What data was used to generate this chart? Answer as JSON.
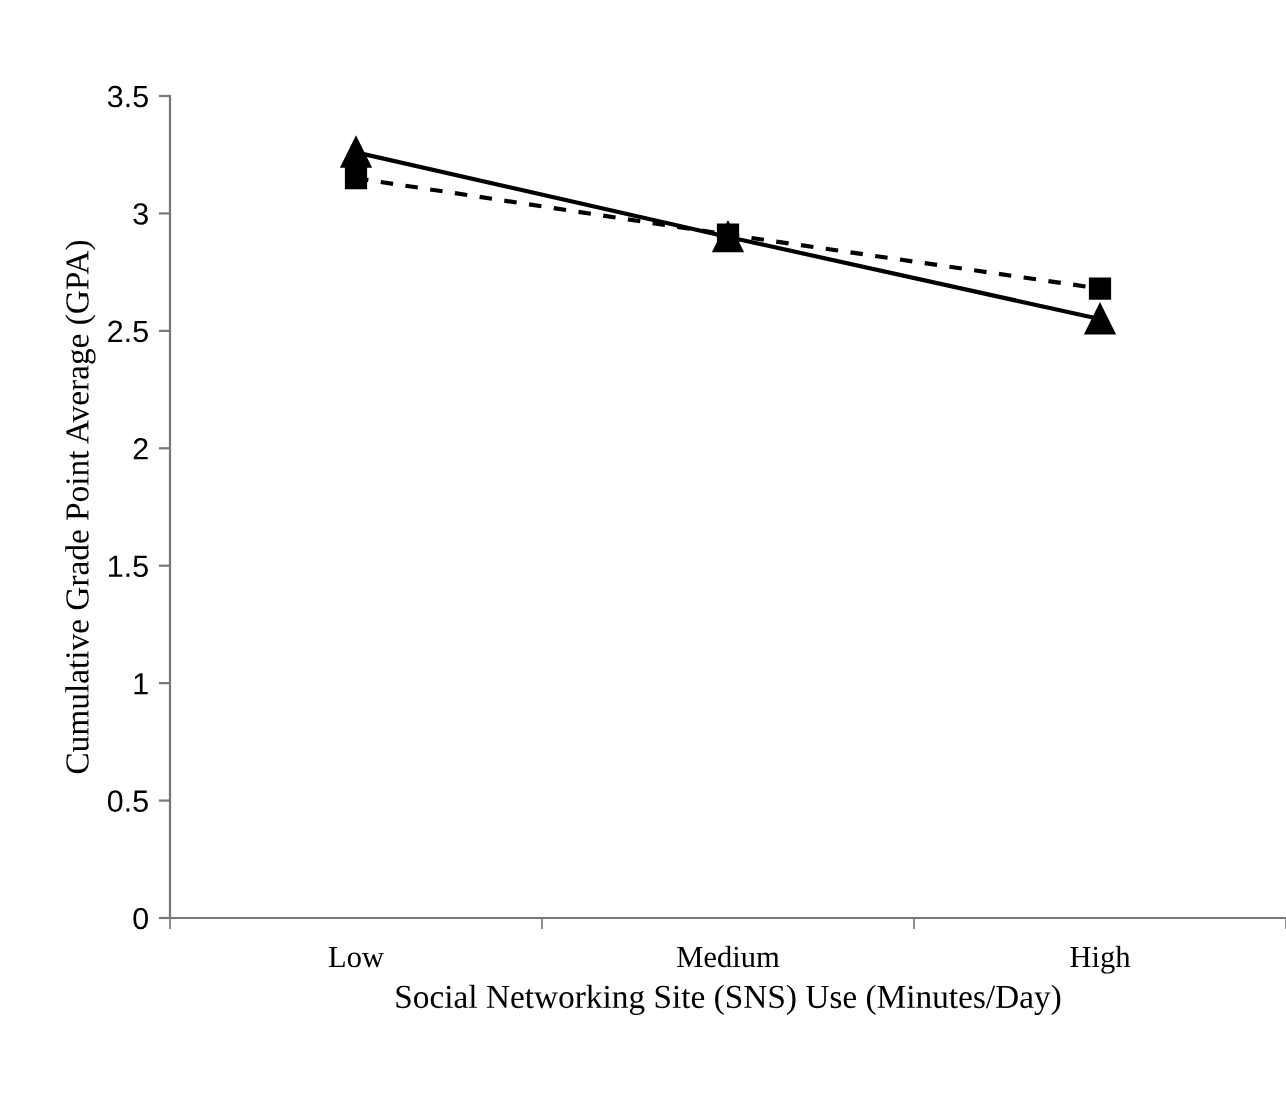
{
  "chart_data": {
    "type": "line",
    "xlabel": "Social Networking Site (SNS) Use (Minutes/Day)",
    "ylabel": "Cumulative Grade Point Average (GPA)",
    "categories": [
      "Low",
      "Medium",
      "High"
    ],
    "series": [
      {
        "color": "#000000",
        "values": [
          3.26,
          2.9,
          2.55
        ],
        "marker": "triangle",
        "line_style": "solid"
      },
      {
        "color": "#000000",
        "values": [
          3.15,
          2.91,
          2.68
        ],
        "marker": "square",
        "line_style": "dashed"
      }
    ],
    "ylim": [
      0,
      3.5
    ],
    "yticks": [
      0,
      0.5,
      1,
      1.5,
      2,
      2.5,
      3,
      3.5
    ],
    "grid": false,
    "legend": false
  }
}
